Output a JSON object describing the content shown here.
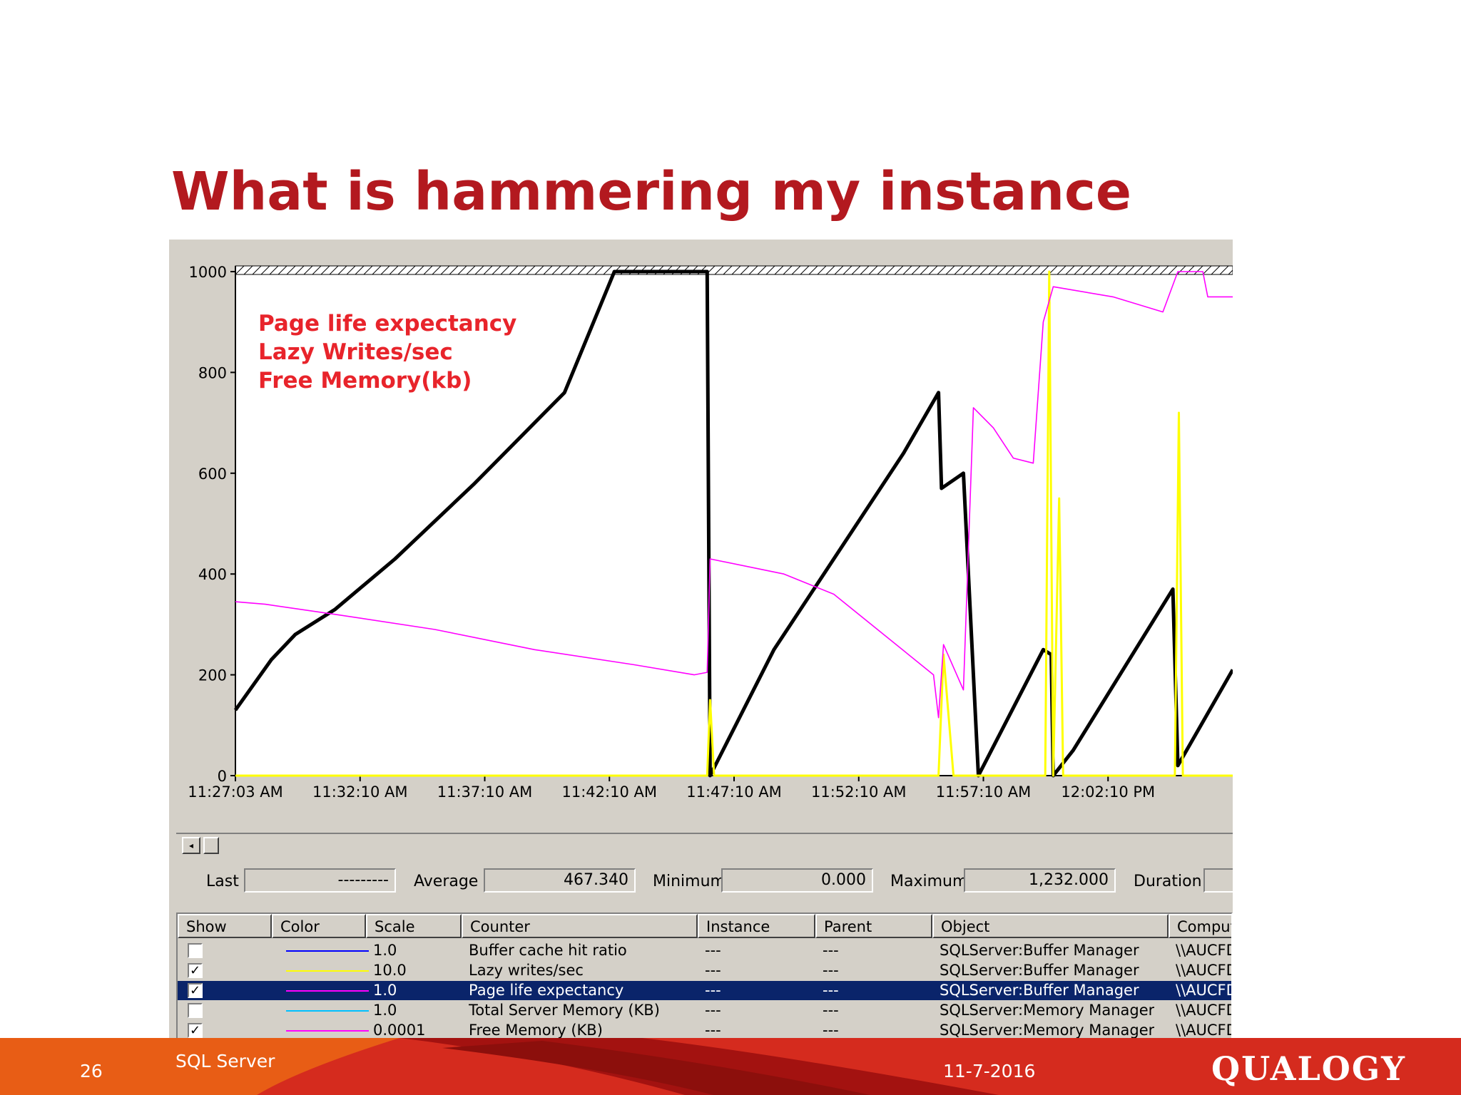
{
  "slide": {
    "title": "What is hammering my instance",
    "footer_page": "26",
    "footer_section": "SQL Server",
    "footer_date": "11-7-2016",
    "logo": "QUALOGY",
    "accent_color": "#b3191f"
  },
  "graph": {
    "annotations": [
      "Page life expectancy",
      "Lazy Writes/sec",
      "Free Memory(kb)"
    ],
    "annotation_color": "#e8242b",
    "y_ticks": [
      "1000",
      "800",
      "600",
      "400",
      "200",
      "0"
    ],
    "x_ticks": [
      "11:27:03 AM",
      "11:32:10 AM",
      "11:37:10 AM",
      "11:42:10 AM",
      "11:47:10 AM",
      "11:52:10 AM",
      "11:57:10 AM",
      "12:02:10 PM"
    ]
  },
  "chart_data": {
    "type": "line",
    "ylim": [
      0,
      1000
    ],
    "x_labels": [
      "11:27:03 AM",
      "11:32:10 AM",
      "11:37:10 AM",
      "11:42:10 AM",
      "11:47:10 AM",
      "11:52:10 AM",
      "11:57:10 AM",
      "12:02:10 PM"
    ],
    "series": [
      {
        "name": "Page life expectancy",
        "color": "#000000",
        "points": [
          [
            0,
            130
          ],
          [
            0.018,
            180
          ],
          [
            0.036,
            230
          ],
          [
            0.06,
            280
          ],
          [
            0.1,
            330
          ],
          [
            0.16,
            430
          ],
          [
            0.24,
            580
          ],
          [
            0.33,
            760
          ],
          [
            0.38,
            1000
          ],
          [
            0.473,
            1000
          ],
          [
            0.476,
            0
          ],
          [
            0.54,
            250
          ],
          [
            0.6,
            430
          ],
          [
            0.67,
            640
          ],
          [
            0.705,
            760
          ],
          [
            0.708,
            570
          ],
          [
            0.73,
            600
          ],
          [
            0.745,
            0
          ],
          [
            0.81,
            250
          ],
          [
            0.818,
            240
          ],
          [
            0.82,
            0
          ],
          [
            0.84,
            50
          ],
          [
            0.94,
            370
          ],
          [
            0.945,
            20
          ],
          [
            1.0,
            210
          ]
        ]
      },
      {
        "name": "Lazy writes/sec",
        "color": "#ffff00",
        "points": [
          [
            0,
            0
          ],
          [
            0.473,
            0
          ],
          [
            0.476,
            150
          ],
          [
            0.48,
            0
          ],
          [
            0.705,
            0
          ],
          [
            0.71,
            240
          ],
          [
            0.72,
            0
          ],
          [
            0.812,
            0
          ],
          [
            0.816,
            1000
          ],
          [
            0.82,
            0
          ],
          [
            0.826,
            550
          ],
          [
            0.83,
            0
          ],
          [
            0.942,
            0
          ],
          [
            0.946,
            720
          ],
          [
            0.95,
            0
          ],
          [
            1.0,
            0
          ]
        ]
      },
      {
        "name": "Free Memory (KB)",
        "color": "#ff00ff",
        "points": [
          [
            0,
            345
          ],
          [
            0.03,
            340
          ],
          [
            0.1,
            320
          ],
          [
            0.2,
            290
          ],
          [
            0.3,
            250
          ],
          [
            0.4,
            220
          ],
          [
            0.46,
            200
          ],
          [
            0.473,
            205
          ],
          [
            0.476,
            430
          ],
          [
            0.55,
            400
          ],
          [
            0.6,
            360
          ],
          [
            0.65,
            280
          ],
          [
            0.7,
            200
          ],
          [
            0.705,
            115
          ],
          [
            0.71,
            260
          ],
          [
            0.73,
            170
          ],
          [
            0.74,
            730
          ],
          [
            0.76,
            690
          ],
          [
            0.78,
            630
          ],
          [
            0.8,
            620
          ],
          [
            0.81,
            900
          ],
          [
            0.82,
            970
          ],
          [
            0.88,
            950
          ],
          [
            0.93,
            920
          ],
          [
            0.945,
            1000
          ],
          [
            0.97,
            1000
          ],
          [
            0.975,
            950
          ],
          [
            1.0,
            950
          ]
        ]
      }
    ]
  },
  "scrollbar": {
    "left_arrow": "◂"
  },
  "stats": {
    "last_label": "Last",
    "last_value": "---------",
    "average_label": "Average",
    "average_value": "467.340",
    "minimum_label": "Minimum",
    "minimum_value": "0.000",
    "maximum_label": "Maximum",
    "maximum_value": "1,232.000",
    "duration_label": "Duration",
    "duration_value": ""
  },
  "table": {
    "headers": [
      "Show",
      "Color",
      "Scale",
      "Counter",
      "Instance",
      "Parent",
      "Object",
      "Comput"
    ],
    "rows": [
      {
        "checked": false,
        "color": "#0000ff",
        "scale": "1.0",
        "counter": "Buffer cache hit ratio",
        "instance": "---",
        "parent": "---",
        "object": "SQLServer:Buffer Manager",
        "computer": "\\\\AUCFD",
        "selected": false
      },
      {
        "checked": true,
        "color": "#ffff00",
        "scale": "10.0",
        "counter": "Lazy writes/sec",
        "instance": "---",
        "parent": "---",
        "object": "SQLServer:Buffer Manager",
        "computer": "\\\\AUCFD",
        "selected": false
      },
      {
        "checked": true,
        "color": "#ff00ff",
        "scale": "1.0",
        "counter": "Page life expectancy",
        "instance": "---",
        "parent": "---",
        "object": "SQLServer:Buffer Manager",
        "computer": "\\\\AUCFD",
        "selected": true
      },
      {
        "checked": false,
        "color": "#00c0ff",
        "scale": "1.0",
        "counter": "Total Server Memory (KB)",
        "instance": "---",
        "parent": "---",
        "object": "SQLServer:Memory Manager",
        "computer": "\\\\AUCFD",
        "selected": false
      },
      {
        "checked": true,
        "color": "#ff00ff",
        "scale": "0.0001",
        "counter": "Free Memory (KB)",
        "instance": "---",
        "parent": "---",
        "object": "SQLServer:Memory Manager",
        "computer": "\\\\AUCFD",
        "selected": false
      }
    ]
  }
}
